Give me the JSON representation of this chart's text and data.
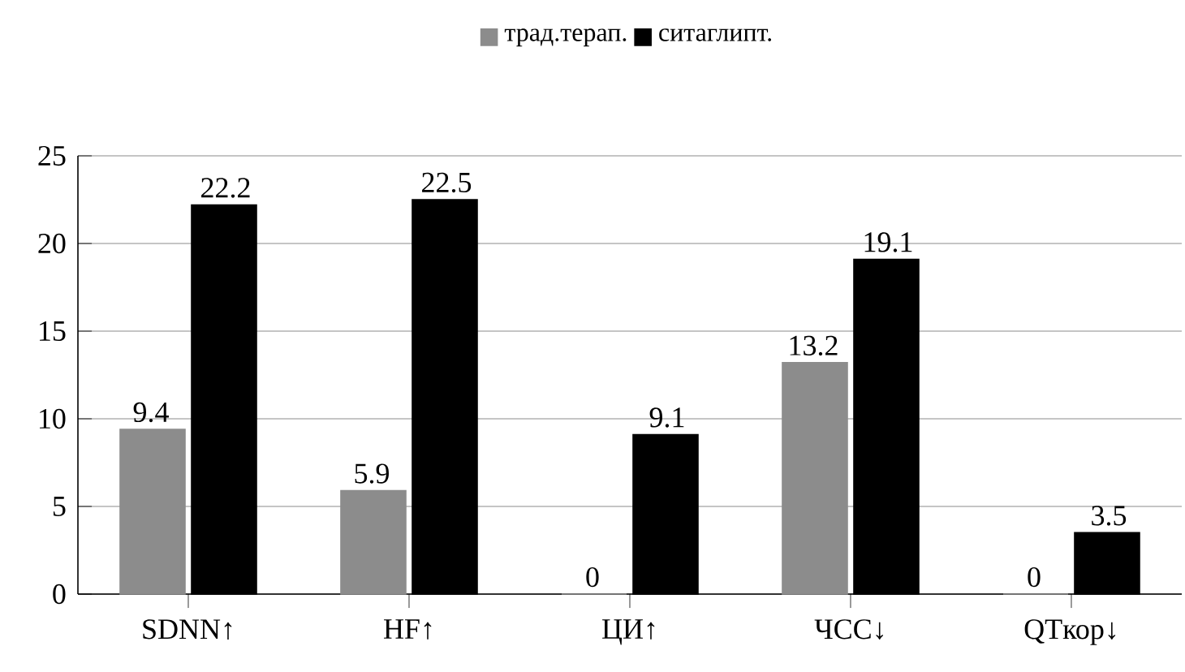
{
  "chart_data": {
    "type": "bar",
    "categories": [
      "SDNN↑",
      "HF↑",
      "ЦИ↑",
      "ЧСС↓",
      "QTкор↓"
    ],
    "series": [
      {
        "name": "трад.терап.",
        "color": "#8c8c8c",
        "values": [
          9.4,
          5.9,
          0,
          13.2,
          0
        ]
      },
      {
        "name": "ситаглипт.",
        "color": "#000000",
        "values": [
          22.2,
          22.5,
          9.1,
          19.1,
          3.5
        ]
      }
    ],
    "ylim": [
      0,
      25
    ],
    "yticks": [
      0,
      5,
      10,
      15,
      20,
      25
    ],
    "grid": "y",
    "legend": "top",
    "data_labels": true
  }
}
